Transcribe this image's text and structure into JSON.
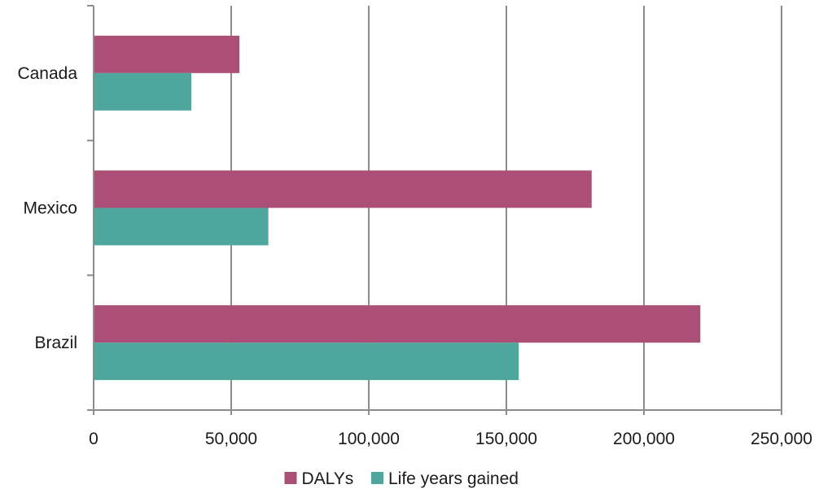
{
  "chart_data": {
    "type": "bar",
    "orientation": "horizontal",
    "categories": [
      "Canada",
      "Mexico",
      "Brazil"
    ],
    "series": [
      {
        "name": "DALYs",
        "color": "#ab4f77",
        "values": [
          53000,
          181000,
          220500
        ]
      },
      {
        "name": "Life years gained",
        "color": "#4fa69d",
        "values": [
          35500,
          63500,
          154500
        ]
      }
    ],
    "xlim": [
      0,
      250000
    ],
    "x_ticks": [
      0,
      50000,
      100000,
      150000,
      200000,
      250000
    ],
    "x_tick_labels": [
      "0",
      "50,000",
      "100,000",
      "150,000",
      "200,000",
      "250,000"
    ],
    "grid": true,
    "grid_axis": "x",
    "legend_position": "bottom",
    "title": "",
    "xlabel": "",
    "ylabel": ""
  }
}
